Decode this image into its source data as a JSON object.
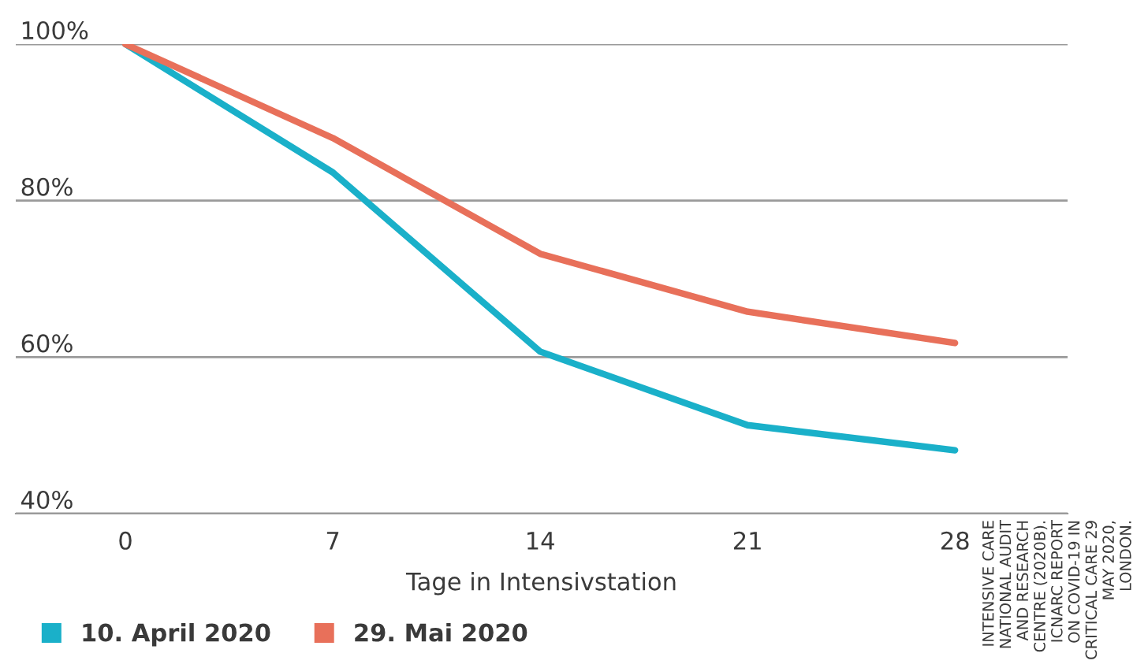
{
  "chart_data": {
    "type": "line",
    "xlabel": "Tage in Intensivstation",
    "x": [
      0,
      7,
      14,
      21,
      28
    ],
    "series": [
      {
        "name": "10. April 2020",
        "color": "#1ab0c9",
        "values": [
          100,
          83.6,
          60.7,
          51.3,
          48.1
        ]
      },
      {
        "name": "29. Mai 2020",
        "color": "#e8705a",
        "values": [
          100,
          88.0,
          73.2,
          65.8,
          61.8
        ]
      }
    ],
    "xlim": [
      -3.7,
      31.8
    ],
    "xticks": [
      0,
      7,
      14,
      21,
      28
    ],
    "ylim": [
      40,
      100
    ],
    "yticks": [
      {
        "value": 40,
        "label": "40%"
      },
      {
        "value": 60,
        "label": "60%"
      },
      {
        "value": 80,
        "label": "80%"
      },
      {
        "value": 100,
        "label": "100%"
      }
    ],
    "grid": "y",
    "legend": "bottom left",
    "marker": "none",
    "line_style": "solid",
    "annotations": [
      "INTENSIVE CARE NATIONAL AUDIT AND RESEARCH CENTRE (2020B). ICNARC REPORT ON COVID-19 IN CRITICAL CARE 29 MAY 2020, LONDON."
    ]
  }
}
